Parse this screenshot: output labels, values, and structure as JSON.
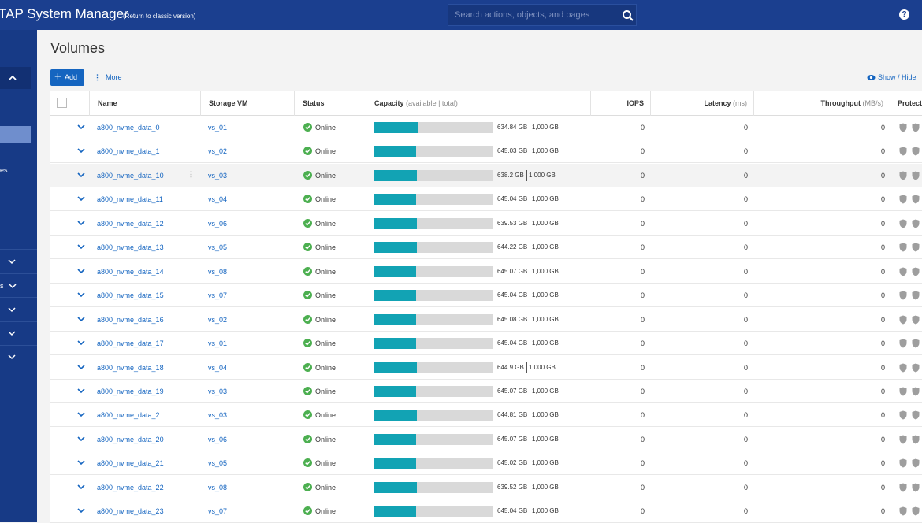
{
  "header": {
    "title": "TAP System Manager",
    "classic_link": "(Return to classic version)",
    "search_placeholder": "Search actions, objects, and pages",
    "help": "?"
  },
  "sidebar": {
    "partial_labels": [
      "es",
      "s"
    ]
  },
  "page": {
    "title": "Volumes",
    "add_label": "Add",
    "more_label": "More",
    "show_hide_label": "Show / Hide"
  },
  "columns": {
    "name": "Name",
    "storage_vm": "Storage VM",
    "status": "Status",
    "capacity": "Capacity",
    "capacity_sub": "(available | total)",
    "iops": "IOPS",
    "latency": "Latency",
    "latency_unit": "(ms)",
    "throughput": "Throughput",
    "throughput_unit": "(MB/s)",
    "protection": "Protect"
  },
  "colors": {
    "header_bg": "#1b3f8f",
    "sidebar_bg": "#173a86",
    "link": "#1565c0",
    "capacity_fill": "#12a3b4",
    "online_green": "#4caf50"
  },
  "volumes": [
    {
      "name": "a800_nvme_data_0",
      "svm": "vs_01",
      "status": "Online",
      "available": "634.84 GB",
      "total": "1,000 GB",
      "used_fraction": 0.37,
      "iops": "0",
      "latency": "0",
      "throughput": "0"
    },
    {
      "name": "a800_nvme_data_1",
      "svm": "vs_02",
      "status": "Online",
      "available": "645.03 GB",
      "total": "1,000 GB",
      "used_fraction": 0.35,
      "iops": "0",
      "latency": "0",
      "throughput": "0"
    },
    {
      "name": "a800_nvme_data_10",
      "svm": "vs_03",
      "status": "Online",
      "available": "638.2 GB",
      "total": "1,000 GB",
      "used_fraction": 0.36,
      "iops": "0",
      "latency": "0",
      "throughput": "0",
      "highlighted": true
    },
    {
      "name": "a800_nvme_data_11",
      "svm": "vs_04",
      "status": "Online",
      "available": "645.04 GB",
      "total": "1,000 GB",
      "used_fraction": 0.35,
      "iops": "0",
      "latency": "0",
      "throughput": "0"
    },
    {
      "name": "a800_nvme_data_12",
      "svm": "vs_06",
      "status": "Online",
      "available": "639.53 GB",
      "total": "1,000 GB",
      "used_fraction": 0.36,
      "iops": "0",
      "latency": "0",
      "throughput": "0"
    },
    {
      "name": "a800_nvme_data_13",
      "svm": "vs_05",
      "status": "Online",
      "available": "644.22 GB",
      "total": "1,000 GB",
      "used_fraction": 0.36,
      "iops": "0",
      "latency": "0",
      "throughput": "0"
    },
    {
      "name": "a800_nvme_data_14",
      "svm": "vs_08",
      "status": "Online",
      "available": "645.07 GB",
      "total": "1,000 GB",
      "used_fraction": 0.35,
      "iops": "0",
      "latency": "0",
      "throughput": "0"
    },
    {
      "name": "a800_nvme_data_15",
      "svm": "vs_07",
      "status": "Online",
      "available": "645.04 GB",
      "total": "1,000 GB",
      "used_fraction": 0.35,
      "iops": "0",
      "latency": "0",
      "throughput": "0"
    },
    {
      "name": "a800_nvme_data_16",
      "svm": "vs_02",
      "status": "Online",
      "available": "645.08 GB",
      "total": "1,000 GB",
      "used_fraction": 0.35,
      "iops": "0",
      "latency": "0",
      "throughput": "0"
    },
    {
      "name": "a800_nvme_data_17",
      "svm": "vs_01",
      "status": "Online",
      "available": "645.04 GB",
      "total": "1,000 GB",
      "used_fraction": 0.35,
      "iops": "0",
      "latency": "0",
      "throughput": "0"
    },
    {
      "name": "a800_nvme_data_18",
      "svm": "vs_04",
      "status": "Online",
      "available": "644.9 GB",
      "total": "1,000 GB",
      "used_fraction": 0.36,
      "iops": "0",
      "latency": "0",
      "throughput": "0"
    },
    {
      "name": "a800_nvme_data_19",
      "svm": "vs_03",
      "status": "Online",
      "available": "645.07 GB",
      "total": "1,000 GB",
      "used_fraction": 0.35,
      "iops": "0",
      "latency": "0",
      "throughput": "0"
    },
    {
      "name": "a800_nvme_data_2",
      "svm": "vs_03",
      "status": "Online",
      "available": "644.81 GB",
      "total": "1,000 GB",
      "used_fraction": 0.36,
      "iops": "0",
      "latency": "0",
      "throughput": "0"
    },
    {
      "name": "a800_nvme_data_20",
      "svm": "vs_06",
      "status": "Online",
      "available": "645.07 GB",
      "total": "1,000 GB",
      "used_fraction": 0.35,
      "iops": "0",
      "latency": "0",
      "throughput": "0"
    },
    {
      "name": "a800_nvme_data_21",
      "svm": "vs_05",
      "status": "Online",
      "available": "645.02 GB",
      "total": "1,000 GB",
      "used_fraction": 0.35,
      "iops": "0",
      "latency": "0",
      "throughput": "0"
    },
    {
      "name": "a800_nvme_data_22",
      "svm": "vs_08",
      "status": "Online",
      "available": "639.52 GB",
      "total": "1,000 GB",
      "used_fraction": 0.36,
      "iops": "0",
      "latency": "0",
      "throughput": "0"
    },
    {
      "name": "a800_nvme_data_23",
      "svm": "vs_07",
      "status": "Online",
      "available": "645.04 GB",
      "total": "1,000 GB",
      "used_fraction": 0.35,
      "iops": "0",
      "latency": "0",
      "throughput": "0"
    }
  ]
}
